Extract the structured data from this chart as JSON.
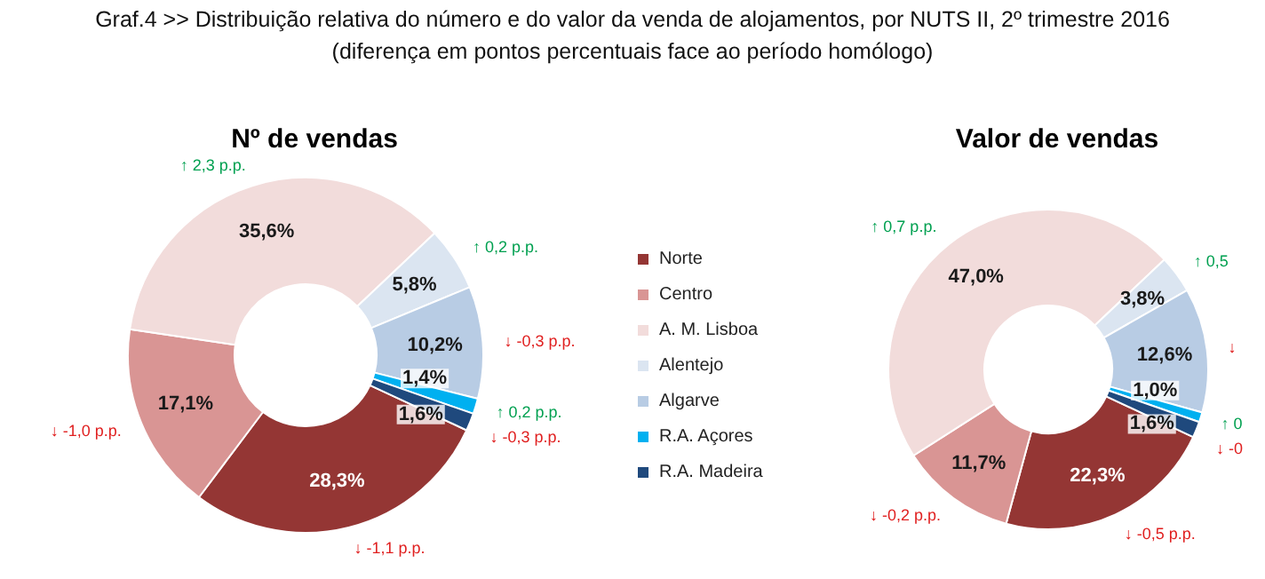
{
  "chart_data": [
    {
      "type": "other",
      "title": "Graf.4  >>  Distribuição relativa do número e do valor da venda de alojamentos, por NUTS II, 2º trimestre 2016",
      "subtitle": "(diferença em pontos percentuais face ao período homólogo)"
    },
    {
      "type": "donut",
      "title": "Nº de vendas",
      "categories": [
        "Norte",
        "Centro",
        "A. M. Lisboa",
        "Alentejo",
        "Algarve",
        "R.A. Açores",
        "R.A. Madeira"
      ],
      "values": [
        28.3,
        17.1,
        35.6,
        5.8,
        10.2,
        1.4,
        1.6
      ],
      "colors": [
        "#943634",
        "#d99594",
        "#f2dcdb",
        "#dbe5f1",
        "#b8cce4",
        "#00b0f0",
        "#1f497d"
      ],
      "value_labels": [
        "28,3%",
        "17,1%",
        "35,6%",
        "5,8%",
        "10,2%",
        "1,4%",
        "1,6%"
      ],
      "legend": "right",
      "annotations": [
        {
          "text": "↓ -1,1 p.p.",
          "x": "Norte"
        },
        {
          "text": "↓ -1,0 p.p.",
          "x": "Centro"
        },
        {
          "text": "↑ 2,3 p.p.",
          "x": "A. M. Lisboa"
        },
        {
          "text": "↑ 0,2 p.p.",
          "x": "Alentejo"
        },
        {
          "text": "↓ -0,3 p.p.",
          "x": "Algarve"
        },
        {
          "text": "↑ 0,2 p.p.",
          "x": "R.A. Açores"
        },
        {
          "text": "↓ -0,3 p.p.",
          "x": "R.A. Madeira"
        }
      ]
    },
    {
      "type": "donut",
      "title": "Valor de vendas",
      "categories": [
        null,
        null,
        null,
        null,
        null,
        null,
        null
      ],
      "values": [
        22.3,
        11.7,
        47.0,
        3.8,
        12.6,
        1.0,
        1.6
      ],
      "colors": [
        "#943634",
        "#d99594",
        "#f2dcdb",
        "#dbe5f1",
        "#b8cce4",
        "#00b0f0",
        "#1f497d"
      ],
      "value_labels": [
        "22,3%",
        "11,7%",
        "47,0%",
        "3,8%",
        "12,6%",
        "1,0%",
        "1,6%"
      ],
      "annotations": [
        "↓ -0,5 p.p.",
        "↓ -0,2 p.p.",
        "↑ 0,7 p.p.",
        "↑ 0,5",
        "↓",
        "↑ 0",
        "↓ -0"
      ]
    }
  ]
}
